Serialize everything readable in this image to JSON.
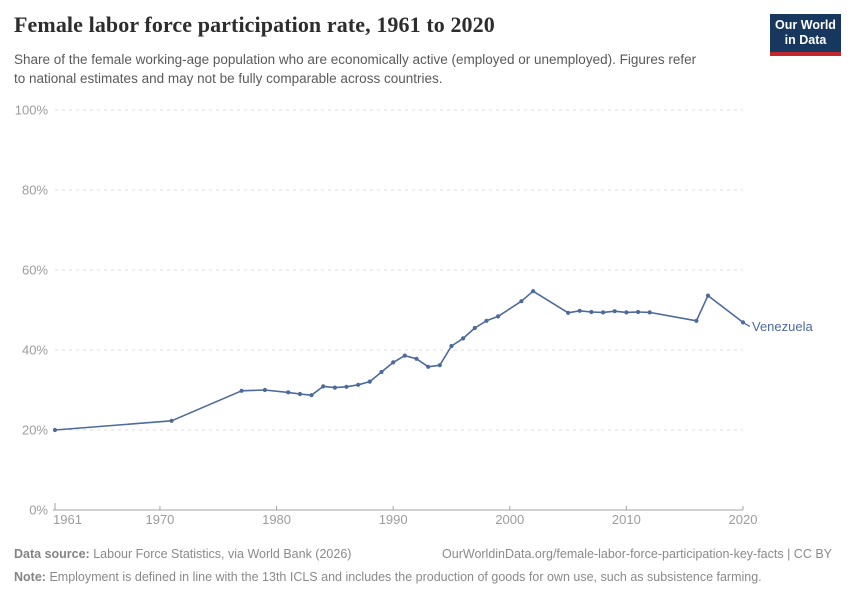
{
  "header": {
    "title": "Female labor force participation rate, 1961 to 2020",
    "subtitle": "Share of the female working-age population who are economically active (employed or unemployed). Figures refer to national estimates and may not be fully comparable across countries.",
    "logo": {
      "line1": "Our World",
      "line2": "in Data",
      "bg_color": "#18375f",
      "accent_color": "#c3262d"
    }
  },
  "chart_data": {
    "type": "line",
    "title": "Female labor force participation rate, 1961 to 2020",
    "subtitle": "Share of the female working-age population who are economically active (employed or unemployed). Figures refer to national estimates and may not be fully comparable across countries.",
    "xlabel": "",
    "ylabel": "",
    "xlim": [
      1961,
      2020
    ],
    "ylim": [
      0,
      100
    ],
    "grid": "horizontal-dashed",
    "legend_position": "end-of-line-label",
    "yticks": [
      {
        "value": 0,
        "label": "0%"
      },
      {
        "value": 20,
        "label": "20%"
      },
      {
        "value": 40,
        "label": "40%"
      },
      {
        "value": 60,
        "label": "60%"
      },
      {
        "value": 80,
        "label": "80%"
      },
      {
        "value": 100,
        "label": "100%"
      }
    ],
    "xticks": [
      {
        "value": 1961,
        "label": "1961"
      },
      {
        "value": 1970,
        "label": "1970"
      },
      {
        "value": 1980,
        "label": "1980"
      },
      {
        "value": 1990,
        "label": "1990"
      },
      {
        "value": 2000,
        "label": "2000"
      },
      {
        "value": 2010,
        "label": "2010"
      },
      {
        "value": 2020,
        "label": "2020"
      }
    ],
    "series": [
      {
        "name": "Venezuela",
        "color": "#4c6a9c",
        "points": [
          [
            1961,
            20.0
          ],
          [
            1971,
            22.3
          ],
          [
            1977,
            29.8
          ],
          [
            1979,
            30.0
          ],
          [
            1981,
            29.4
          ],
          [
            1982,
            29.0
          ],
          [
            1983,
            28.7
          ],
          [
            1984,
            30.9
          ],
          [
            1985,
            30.6
          ],
          [
            1986,
            30.8
          ],
          [
            1987,
            31.3
          ],
          [
            1988,
            32.1
          ],
          [
            1989,
            34.5
          ],
          [
            1990,
            36.9
          ],
          [
            1991,
            38.6
          ],
          [
            1992,
            37.8
          ],
          [
            1993,
            35.8
          ],
          [
            1994,
            36.2
          ],
          [
            1995,
            41.0
          ],
          [
            1996,
            42.9
          ],
          [
            1997,
            45.5
          ],
          [
            1998,
            47.3
          ],
          [
            1999,
            48.4
          ],
          [
            2001,
            52.2
          ],
          [
            2002,
            54.7
          ],
          [
            2005,
            49.3
          ],
          [
            2006,
            49.8
          ],
          [
            2007,
            49.5
          ],
          [
            2008,
            49.4
          ],
          [
            2009,
            49.7
          ],
          [
            2010,
            49.4
          ],
          [
            2011,
            49.5
          ],
          [
            2012,
            49.4
          ],
          [
            2016,
            47.3
          ],
          [
            2017,
            53.6
          ],
          [
            2020,
            46.9
          ]
        ]
      }
    ]
  },
  "footer": {
    "source_label": "Data source:",
    "source_text": "Labour Force Statistics, via World Bank (2026)",
    "attribution": "OurWorldinData.org/female-labor-force-participation-key-facts | CC BY",
    "note_label": "Note:",
    "note_text": "Employment is defined in line with the 13th ICLS and includes the production of goods for own use, such as subsistence farming."
  }
}
